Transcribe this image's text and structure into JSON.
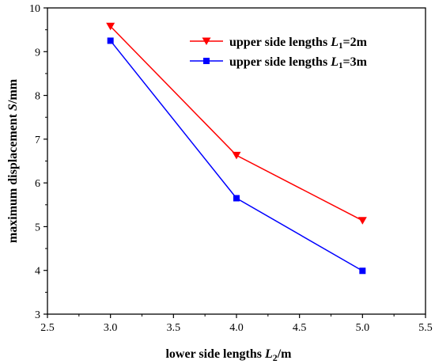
{
  "chart_data": {
    "type": "line",
    "xlabel": {
      "prefix": "lower side lengths ",
      "symbol": "L",
      "sub": "2",
      "suffix": "/m"
    },
    "ylabel": {
      "prefix": "maximum displacement ",
      "symbol": "S",
      "suffix": "/mm"
    },
    "xlim": [
      2.5,
      5.5
    ],
    "ylim": [
      3,
      10
    ],
    "xticks": [
      "2.5",
      "3.0",
      "3.5",
      "4.0",
      "4.5",
      "5.0",
      "5.5"
    ],
    "yticks": [
      "3",
      "4",
      "5",
      "6",
      "7",
      "8",
      "9",
      "10"
    ],
    "grid": false,
    "legend_position": "top-right",
    "series": [
      {
        "legend": {
          "prefix": "upper side lengths ",
          "symbol": "L",
          "sub": "1",
          "suffix": "=2m"
        },
        "color": "#ff0000",
        "marker": "triangle-down",
        "x": [
          3.0,
          4.0,
          5.0
        ],
        "y": [
          9.58,
          6.63,
          5.14
        ]
      },
      {
        "legend": {
          "prefix": "upper side lengths ",
          "symbol": "L",
          "sub": "1",
          "suffix": "=3m"
        },
        "color": "#0000ff",
        "marker": "square",
        "x": [
          3.0,
          4.0,
          5.0
        ],
        "y": [
          9.25,
          5.65,
          3.99
        ]
      }
    ]
  }
}
